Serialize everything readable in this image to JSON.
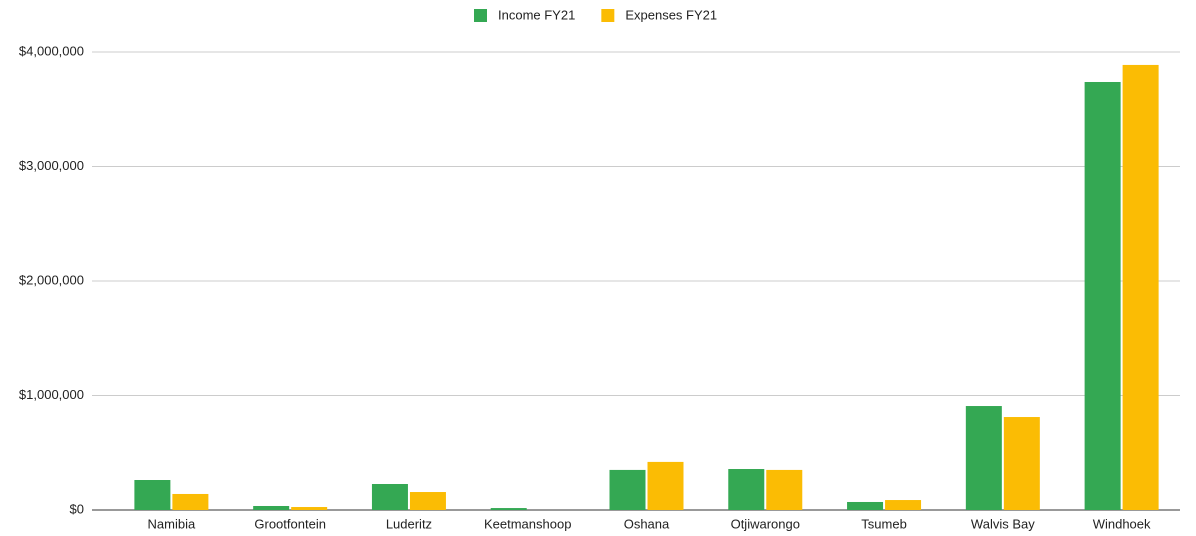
{
  "chart_data": {
    "type": "bar",
    "categories": [
      "Namibia",
      "Grootfontein",
      "Luderitz",
      "Keetmanshoop",
      "Oshana",
      "Otjiwarongo",
      "Tsumeb",
      "Walvis Bay",
      "Windhoek"
    ],
    "series": [
      {
        "name": "Income FY21",
        "color": "#34a853",
        "values": [
          262000,
          35000,
          227000,
          17000,
          350000,
          358000,
          70000,
          908000,
          3738000
        ]
      },
      {
        "name": "Expenses FY21",
        "color": "#fbbc04",
        "values": [
          140000,
          26000,
          157000,
          0,
          420000,
          350000,
          87000,
          812000,
          3887000
        ]
      }
    ],
    "ylim": [
      0,
      4000000
    ],
    "yticks": [
      {
        "value": 0,
        "label": "$0"
      },
      {
        "value": 1000000,
        "label": "$1,000,000"
      },
      {
        "value": 2000000,
        "label": "$2,000,000"
      },
      {
        "value": 3000000,
        "label": "$3,000,000"
      },
      {
        "value": 4000000,
        "label": "$4,000,000"
      }
    ],
    "grid": true,
    "legend": "top"
  }
}
